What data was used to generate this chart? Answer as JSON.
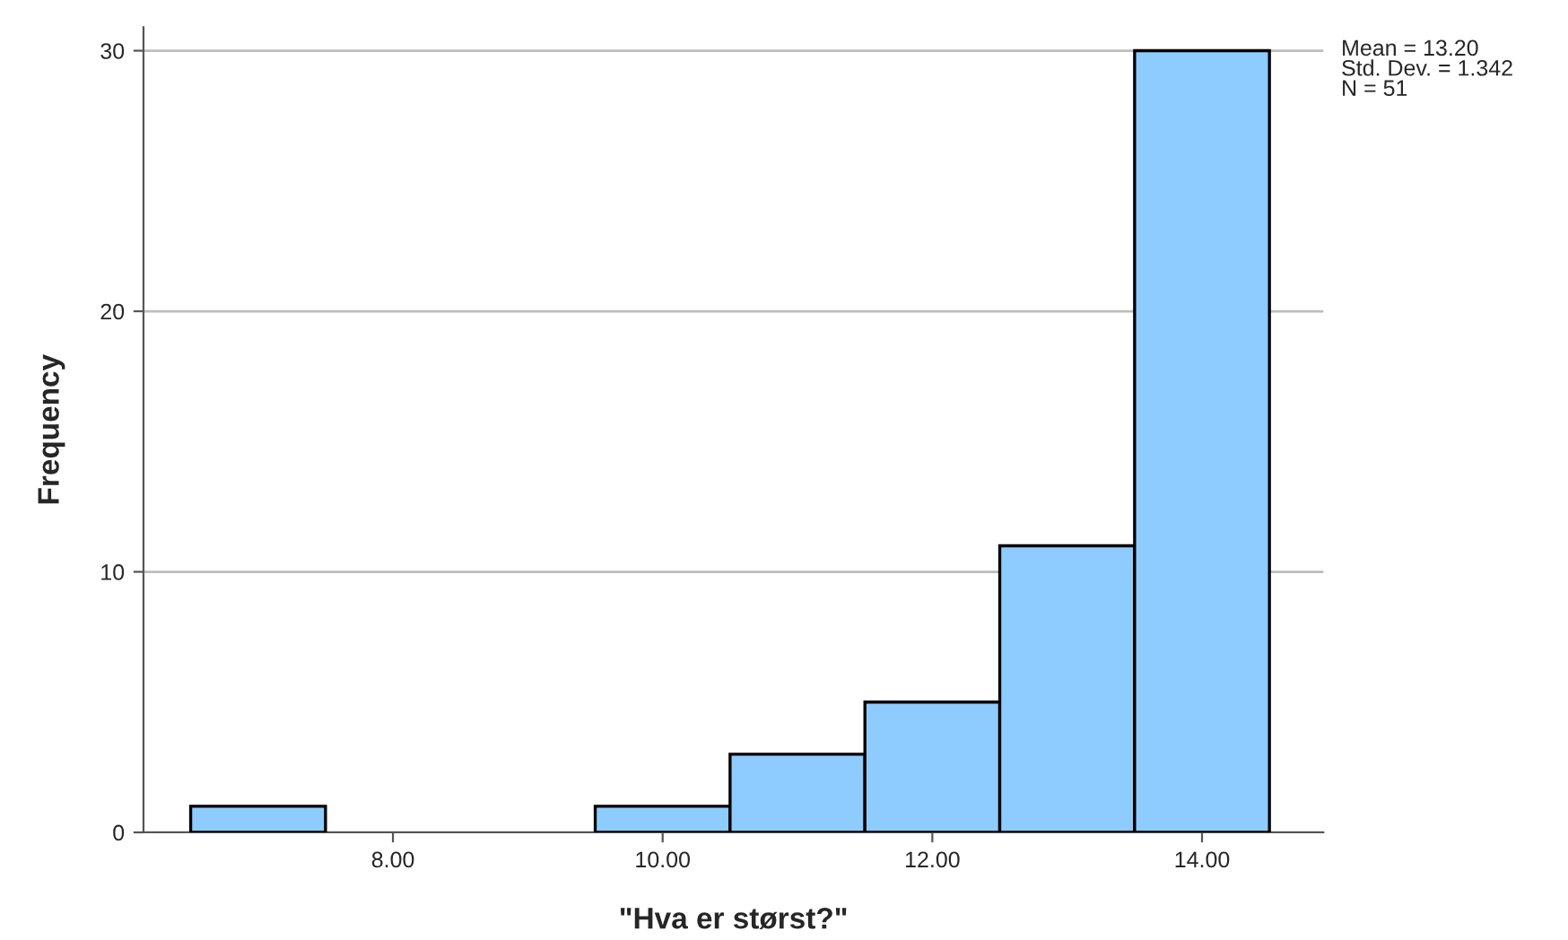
{
  "chart_data": {
    "type": "histogram",
    "xlabel": "\"Hva er størst?\"",
    "ylabel": "Frequency",
    "bins": [
      6.5,
      7.5,
      8.5,
      9.5,
      10.5,
      11.5,
      12.5,
      13.5,
      14.5
    ],
    "values": [
      1,
      0,
      0,
      1,
      3,
      5,
      11,
      30
    ],
    "color": "#8ecbff",
    "xlim": [
      6.15,
      14.9
    ],
    "xticks": [
      {
        "value": 8,
        "label": "8.00"
      },
      {
        "value": 10,
        "label": "10.00"
      },
      {
        "value": 12,
        "label": "12.00"
      },
      {
        "value": 14,
        "label": "14.00"
      }
    ],
    "ylim": [
      0,
      30.9
    ],
    "yticks": [
      0,
      10,
      20,
      30
    ],
    "grid": "y",
    "annotations": [
      "Mean = 13.20\nStd. Dev. = 1.342\nN = 51"
    ]
  }
}
